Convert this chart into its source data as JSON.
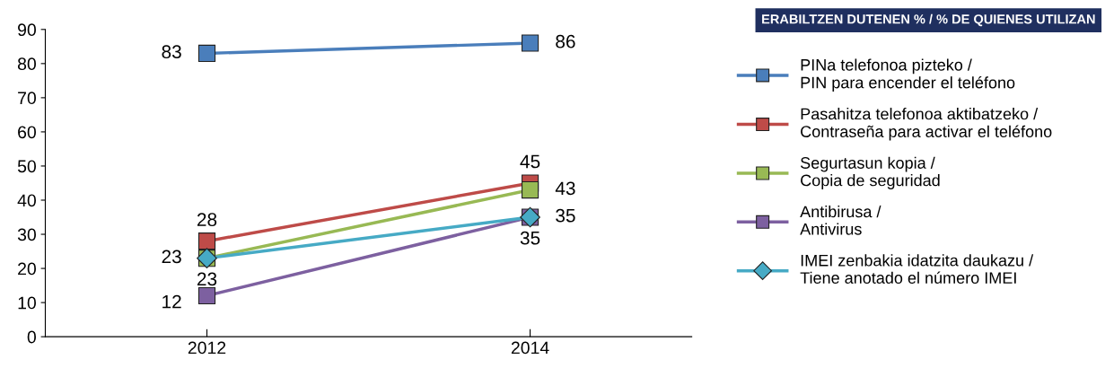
{
  "chart_data": {
    "type": "line",
    "categories": [
      "2012",
      "2014"
    ],
    "ylim": [
      0,
      90
    ],
    "yticks": [
      0,
      10,
      20,
      30,
      40,
      50,
      60,
      70,
      80,
      90
    ],
    "grid": false,
    "legend": "right",
    "data_labels": true,
    "legend_title": "ERABILTZEN DUTENEN % / % DE QUIENES UTILIZAN",
    "series": [
      {
        "name": "PINa telefonoa pizteko /\nPIN para encender el teléfono",
        "color": "#4a7ebb",
        "marker": "square",
        "values": [
          83,
          86
        ]
      },
      {
        "name": "Pasahitza telefonoa aktibatzeko /\nContraseña para activar el teléfono",
        "color": "#be4b48",
        "marker": "square",
        "values": [
          28,
          45
        ]
      },
      {
        "name": "Segurtasun kopia /\nCopia de seguridad",
        "color": "#98b954",
        "marker": "square",
        "values": [
          23,
          43
        ]
      },
      {
        "name": "Antibirusa /\nAntivirus",
        "color": "#7d60a0",
        "marker": "square",
        "values": [
          12,
          35
        ]
      },
      {
        "name": "IMEI zenbakia idatzita daukazu /\nTiene anotado el número IMEI",
        "color": "#46aac5",
        "marker": "diamond",
        "values": [
          23,
          35
        ]
      }
    ]
  }
}
